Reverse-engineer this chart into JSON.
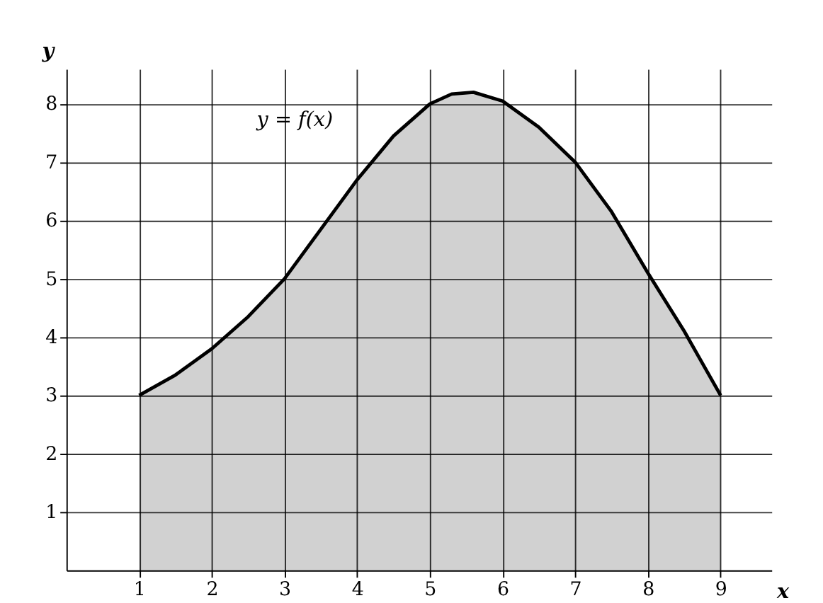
{
  "chart_data": {
    "type": "area",
    "xlabel": "x",
    "ylabel": "y",
    "x": [
      1,
      1.5,
      2,
      2.5,
      3,
      3.5,
      4,
      4.5,
      5,
      5.3,
      5.6,
      6,
      6.5,
      7,
      7.5,
      8,
      8.5,
      9
    ],
    "series": [
      {
        "color": "#000000",
        "values": [
          3,
          3.35,
          3.8,
          4.35,
          5,
          5.85,
          6.7,
          7.45,
          8,
          8.17,
          8.2,
          8.05,
          7.6,
          7,
          6.15,
          5.1,
          4.1,
          3
        ]
      }
    ],
    "xlim": [
      0,
      9.7
    ],
    "ylim": [
      0,
      8.6
    ],
    "xticks": [
      1,
      2,
      3,
      4,
      5,
      6,
      7,
      8,
      9
    ],
    "yticks": [
      1,
      2,
      3,
      4,
      5,
      6,
      7,
      8
    ],
    "grid": true,
    "annotations": [
      "y = f(x)"
    ]
  }
}
